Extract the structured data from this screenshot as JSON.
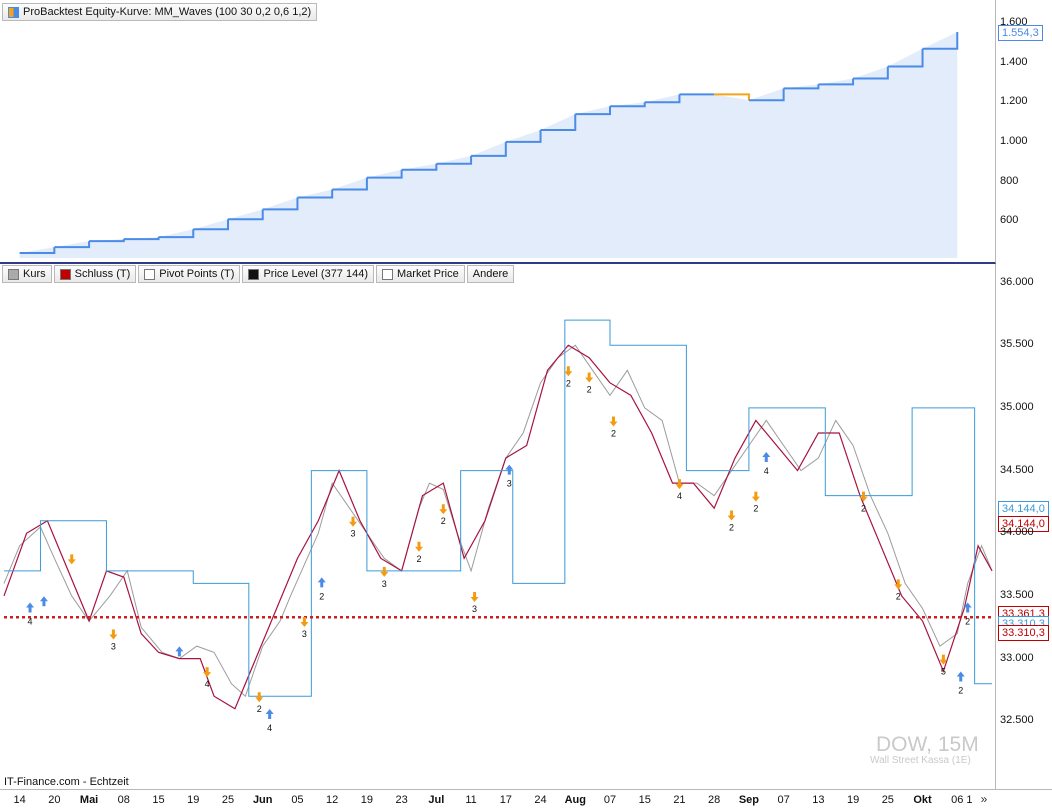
{
  "equity_panel": {
    "legend": "ProBacktest Equity-Kurve: MM_Waves (100 30 0,2 0,6 1,2)",
    "last_value_tag": "1.554,3"
  },
  "price_panel": {
    "legend_items": [
      {
        "label": "Kurs",
        "color": "#aaaaaa"
      },
      {
        "label": "Schluss (T)",
        "color": "#c00000"
      },
      {
        "label": "Pivot Points (T)",
        "color": "#ffffff"
      },
      {
        "label": "Price Level (377 144)",
        "color": "#111111"
      },
      {
        "label": "Market Price",
        "color": "#ffffff"
      },
      {
        "label": "Andere",
        "color": ""
      }
    ],
    "tags": {
      "blue": "34.144,0",
      "red": "34.144,0",
      "level_a": "33.361,3",
      "level_b": "33.310,3",
      "level_c": "33.310,3"
    }
  },
  "watermark": {
    "title": "DOW, 15M",
    "subtitle": "Wall Street Kassa (1E)"
  },
  "footer_source": "IT-Finance.com - Echtzeit",
  "colors": {
    "equity_up": "#4a8be8",
    "equity_down": "#f5a31a",
    "equity_fill": "#e3ecfb",
    "pivot_blue": "#3a9ad9",
    "pivot_crimson": "#a8133e",
    "price_level": "#cc1f1f",
    "arrow_up": "#4a8be8",
    "arrow_down": "#f39c12"
  },
  "chart_data": [
    {
      "type": "area",
      "y_ticks": [
        "1.600",
        "1.400",
        "1.200",
        "1.000",
        "800",
        "600"
      ],
      "y_tick_values": [
        1600,
        1400,
        1200,
        1000,
        800,
        600
      ],
      "ylim": [
        415,
        1665
      ],
      "x": [
        "14",
        "20",
        "Mai",
        "08",
        "15",
        "19",
        "25",
        "Jun",
        "05",
        "12",
        "19",
        "23",
        "Jul",
        "11",
        "17",
        "24",
        "Aug",
        "07",
        "15",
        "21",
        "28",
        "Sep",
        "07",
        "13",
        "19",
        "25",
        "Okt",
        "06"
      ],
      "values": [
        440,
        470,
        500,
        510,
        520,
        560,
        610,
        660,
        720,
        760,
        820,
        860,
        890,
        930,
        1000,
        1060,
        1140,
        1180,
        1200,
        1240,
        1240,
        1210,
        1270,
        1290,
        1320,
        1380,
        1470,
        1554.3
      ]
    },
    {
      "type": "line",
      "y_ticks": [
        "36.000",
        "35.500",
        "35.000",
        "34.500",
        "34.000",
        "33.500",
        "33.000",
        "32.500"
      ],
      "y_tick_values": [
        36000,
        35500,
        35000,
        34500,
        34000,
        33500,
        33000,
        32500
      ],
      "ylim": [
        32000,
        36100
      ],
      "x_labels": [
        {
          "label": "14",
          "month": false
        },
        {
          "label": "20",
          "month": false
        },
        {
          "label": "Mai",
          "month": true
        },
        {
          "label": "08",
          "month": false
        },
        {
          "label": "15",
          "month": false
        },
        {
          "label": "19",
          "month": false
        },
        {
          "label": "25",
          "month": false
        },
        {
          "label": "Jun",
          "month": true
        },
        {
          "label": "05",
          "month": false
        },
        {
          "label": "12",
          "month": false
        },
        {
          "label": "19",
          "month": false
        },
        {
          "label": "23",
          "month": false
        },
        {
          "label": "Jul",
          "month": true
        },
        {
          "label": "11",
          "month": false
        },
        {
          "label": "17",
          "month": false
        },
        {
          "label": "24",
          "month": false
        },
        {
          "label": "Aug",
          "month": true
        },
        {
          "label": "07",
          "month": false
        },
        {
          "label": "15",
          "month": false
        },
        {
          "label": "21",
          "month": false
        },
        {
          "label": "28",
          "month": false
        },
        {
          "label": "Sep",
          "month": true
        },
        {
          "label": "07",
          "month": false
        },
        {
          "label": "13",
          "month": false
        },
        {
          "label": "19",
          "month": false
        },
        {
          "label": "25",
          "month": false
        },
        {
          "label": "Okt",
          "month": true
        },
        {
          "label": "06",
          "month": false
        },
        {
          "label": "1",
          "month": false
        }
      ],
      "x_positions": [
        0,
        1,
        2,
        3,
        4,
        5,
        6,
        7,
        8,
        9,
        10,
        11,
        12,
        13,
        14,
        15,
        16,
        17,
        18,
        19,
        20,
        21,
        22,
        23,
        24,
        25,
        26,
        27,
        27.35
      ],
      "x_range": [
        -0.45,
        28.0
      ],
      "series": [
        {
          "name": "Kurs",
          "points": [
            [
              -0.45,
              33600
            ],
            [
              0,
              33900
            ],
            [
              0.6,
              34050
            ],
            [
              1.0,
              33800
            ],
            [
              1.5,
              33500
            ],
            [
              2.0,
              33300
            ],
            [
              2.6,
              33500
            ],
            [
              3.1,
              33700
            ],
            [
              3.5,
              33250
            ],
            [
              4.1,
              33050
            ],
            [
              4.6,
              33000
            ],
            [
              5.1,
              33100
            ],
            [
              5.6,
              33050
            ],
            [
              6.1,
              32800
            ],
            [
              6.5,
              32700
            ],
            [
              7.0,
              33100
            ],
            [
              7.5,
              33300
            ],
            [
              7.8,
              33500
            ],
            [
              8.2,
              33750
            ],
            [
              8.6,
              34000
            ],
            [
              9.0,
              34400
            ],
            [
              9.5,
              34200
            ],
            [
              10.0,
              34000
            ],
            [
              10.5,
              33800
            ],
            [
              11.0,
              33700
            ],
            [
              11.5,
              34200
            ],
            [
              11.8,
              34400
            ],
            [
              12.2,
              34350
            ],
            [
              12.6,
              34000
            ],
            [
              13.0,
              33700
            ],
            [
              13.5,
              34200
            ],
            [
              14.0,
              34600
            ],
            [
              14.5,
              34800
            ],
            [
              15.0,
              35200
            ],
            [
              15.5,
              35400
            ],
            [
              16.0,
              35500
            ],
            [
              16.5,
              35300
            ],
            [
              17.0,
              35100
            ],
            [
              17.5,
              35300
            ],
            [
              18.0,
              35000
            ],
            [
              18.5,
              34900
            ],
            [
              19.0,
              34400
            ],
            [
              19.5,
              34400
            ],
            [
              20.0,
              34300
            ],
            [
              20.5,
              34500
            ],
            [
              21.0,
              34700
            ],
            [
              21.5,
              34900
            ],
            [
              22.0,
              34700
            ],
            [
              22.5,
              34500
            ],
            [
              23.0,
              34600
            ],
            [
              23.5,
              34900
            ],
            [
              24.0,
              34700
            ],
            [
              24.5,
              34300
            ],
            [
              25.0,
              34000
            ],
            [
              25.5,
              33600
            ],
            [
              26.0,
              33400
            ],
            [
              26.5,
              33100
            ],
            [
              27.0,
              33200
            ],
            [
              27.3,
              33600
            ],
            [
              27.7,
              33900
            ],
            [
              28.0,
              33700
            ]
          ]
        },
        {
          "name": "Schluss (T)",
          "points": [
            [
              -0.45,
              33500
            ],
            [
              0.2,
              34000
            ],
            [
              0.8,
              34100
            ],
            [
              1.4,
              33700
            ],
            [
              2.0,
              33300
            ],
            [
              2.5,
              33700
            ],
            [
              3.0,
              33650
            ],
            [
              3.5,
              33200
            ],
            [
              4.0,
              33050
            ],
            [
              4.6,
              33000
            ],
            [
              5.2,
              33000
            ],
            [
              5.6,
              32700
            ],
            [
              6.2,
              32600
            ],
            [
              6.8,
              33000
            ],
            [
              7.4,
              33400
            ],
            [
              8.0,
              33800
            ],
            [
              8.6,
              34100
            ],
            [
              9.2,
              34500
            ],
            [
              9.8,
              34100
            ],
            [
              10.4,
              33800
            ],
            [
              11.0,
              33700
            ],
            [
              11.6,
              34300
            ],
            [
              12.2,
              34400
            ],
            [
              12.8,
              33800
            ],
            [
              13.4,
              34100
            ],
            [
              14.0,
              34600
            ],
            [
              14.6,
              34700
            ],
            [
              15.2,
              35300
            ],
            [
              15.8,
              35500
            ],
            [
              16.4,
              35400
            ],
            [
              17.0,
              35200
            ],
            [
              17.6,
              35100
            ],
            [
              18.2,
              34800
            ],
            [
              18.8,
              34400
            ],
            [
              19.4,
              34400
            ],
            [
              20.0,
              34200
            ],
            [
              20.6,
              34600
            ],
            [
              21.2,
              34900
            ],
            [
              21.8,
              34700
            ],
            [
              22.4,
              34500
            ],
            [
              23.0,
              34800
            ],
            [
              23.6,
              34800
            ],
            [
              24.2,
              34300
            ],
            [
              24.8,
              33900
            ],
            [
              25.4,
              33500
            ],
            [
              26.0,
              33300
            ],
            [
              26.6,
              32900
            ],
            [
              27.2,
              33400
            ],
            [
              27.6,
              33900
            ],
            [
              28.0,
              33700
            ]
          ]
        },
        {
          "name": "Pivot Points (T)",
          "points": [
            [
              -0.45,
              33700
            ],
            [
              0.6,
              33700
            ],
            [
              0.6,
              34100
            ],
            [
              2.5,
              34100
            ],
            [
              2.5,
              33700
            ],
            [
              5.0,
              33700
            ],
            [
              5.0,
              33600
            ],
            [
              6.6,
              33600
            ],
            [
              6.6,
              32700
            ],
            [
              8.4,
              32700
            ],
            [
              8.4,
              34500
            ],
            [
              10.0,
              34500
            ],
            [
              10.0,
              33700
            ],
            [
              12.7,
              33700
            ],
            [
              12.7,
              34500
            ],
            [
              14.2,
              34500
            ],
            [
              14.2,
              33600
            ],
            [
              15.7,
              33600
            ],
            [
              15.7,
              35700
            ],
            [
              17.0,
              35700
            ],
            [
              17.0,
              35500
            ],
            [
              19.2,
              35500
            ],
            [
              19.2,
              34500
            ],
            [
              21.0,
              34500
            ],
            [
              21.0,
              35000
            ],
            [
              23.2,
              35000
            ],
            [
              23.2,
              34300
            ],
            [
              25.7,
              34300
            ],
            [
              25.7,
              35000
            ],
            [
              27.5,
              35000
            ],
            [
              27.5,
              32800
            ],
            [
              28.0,
              32800
            ]
          ]
        },
        {
          "name": "Price Level (377 144)",
          "points": [
            [
              -0.45,
              33330
            ],
            [
              28.0,
              33330
            ]
          ]
        }
      ],
      "annotations": [
        {
          "x": 0.3,
          "y": 33400,
          "dir": "up",
          "label": "4"
        },
        {
          "x": 0.7,
          "y": 33450,
          "dir": "up",
          "label": ""
        },
        {
          "x": 1.5,
          "y": 33800,
          "dir": "down",
          "label": ""
        },
        {
          "x": 2.7,
          "y": 33200,
          "dir": "down",
          "label": "3"
        },
        {
          "x": 4.6,
          "y": 33050,
          "dir": "up",
          "label": ""
        },
        {
          "x": 5.4,
          "y": 32900,
          "dir": "down",
          "label": "4"
        },
        {
          "x": 6.9,
          "y": 32700,
          "dir": "down",
          "label": "2"
        },
        {
          "x": 7.2,
          "y": 32550,
          "dir": "up",
          "label": "4"
        },
        {
          "x": 8.2,
          "y": 33300,
          "dir": "down",
          "label": "3"
        },
        {
          "x": 8.7,
          "y": 33600,
          "dir": "up",
          "label": "2"
        },
        {
          "x": 9.6,
          "y": 34100,
          "dir": "down",
          "label": "3"
        },
        {
          "x": 10.5,
          "y": 33700,
          "dir": "down",
          "label": "3"
        },
        {
          "x": 11.5,
          "y": 33900,
          "dir": "down",
          "label": "2"
        },
        {
          "x": 12.2,
          "y": 34200,
          "dir": "down",
          "label": "2"
        },
        {
          "x": 13.1,
          "y": 33500,
          "dir": "down",
          "label": "3"
        },
        {
          "x": 14.1,
          "y": 34500,
          "dir": "up",
          "label": "3"
        },
        {
          "x": 15.8,
          "y": 35300,
          "dir": "down",
          "label": "2"
        },
        {
          "x": 16.4,
          "y": 35250,
          "dir": "down",
          "label": "2"
        },
        {
          "x": 17.1,
          "y": 34900,
          "dir": "down",
          "label": "2"
        },
        {
          "x": 19.0,
          "y": 34400,
          "dir": "down",
          "label": "4"
        },
        {
          "x": 20.5,
          "y": 34150,
          "dir": "down",
          "label": "2"
        },
        {
          "x": 21.2,
          "y": 34300,
          "dir": "down",
          "label": "2"
        },
        {
          "x": 21.5,
          "y": 34600,
          "dir": "up",
          "label": "4"
        },
        {
          "x": 24.3,
          "y": 34300,
          "dir": "down",
          "label": "2"
        },
        {
          "x": 25.3,
          "y": 33600,
          "dir": "down",
          "label": "2"
        },
        {
          "x": 26.6,
          "y": 33000,
          "dir": "down",
          "label": "5"
        },
        {
          "x": 27.3,
          "y": 33400,
          "dir": "up",
          "label": "2"
        },
        {
          "x": 27.1,
          "y": 32850,
          "dir": "up",
          "label": "2"
        }
      ]
    }
  ]
}
